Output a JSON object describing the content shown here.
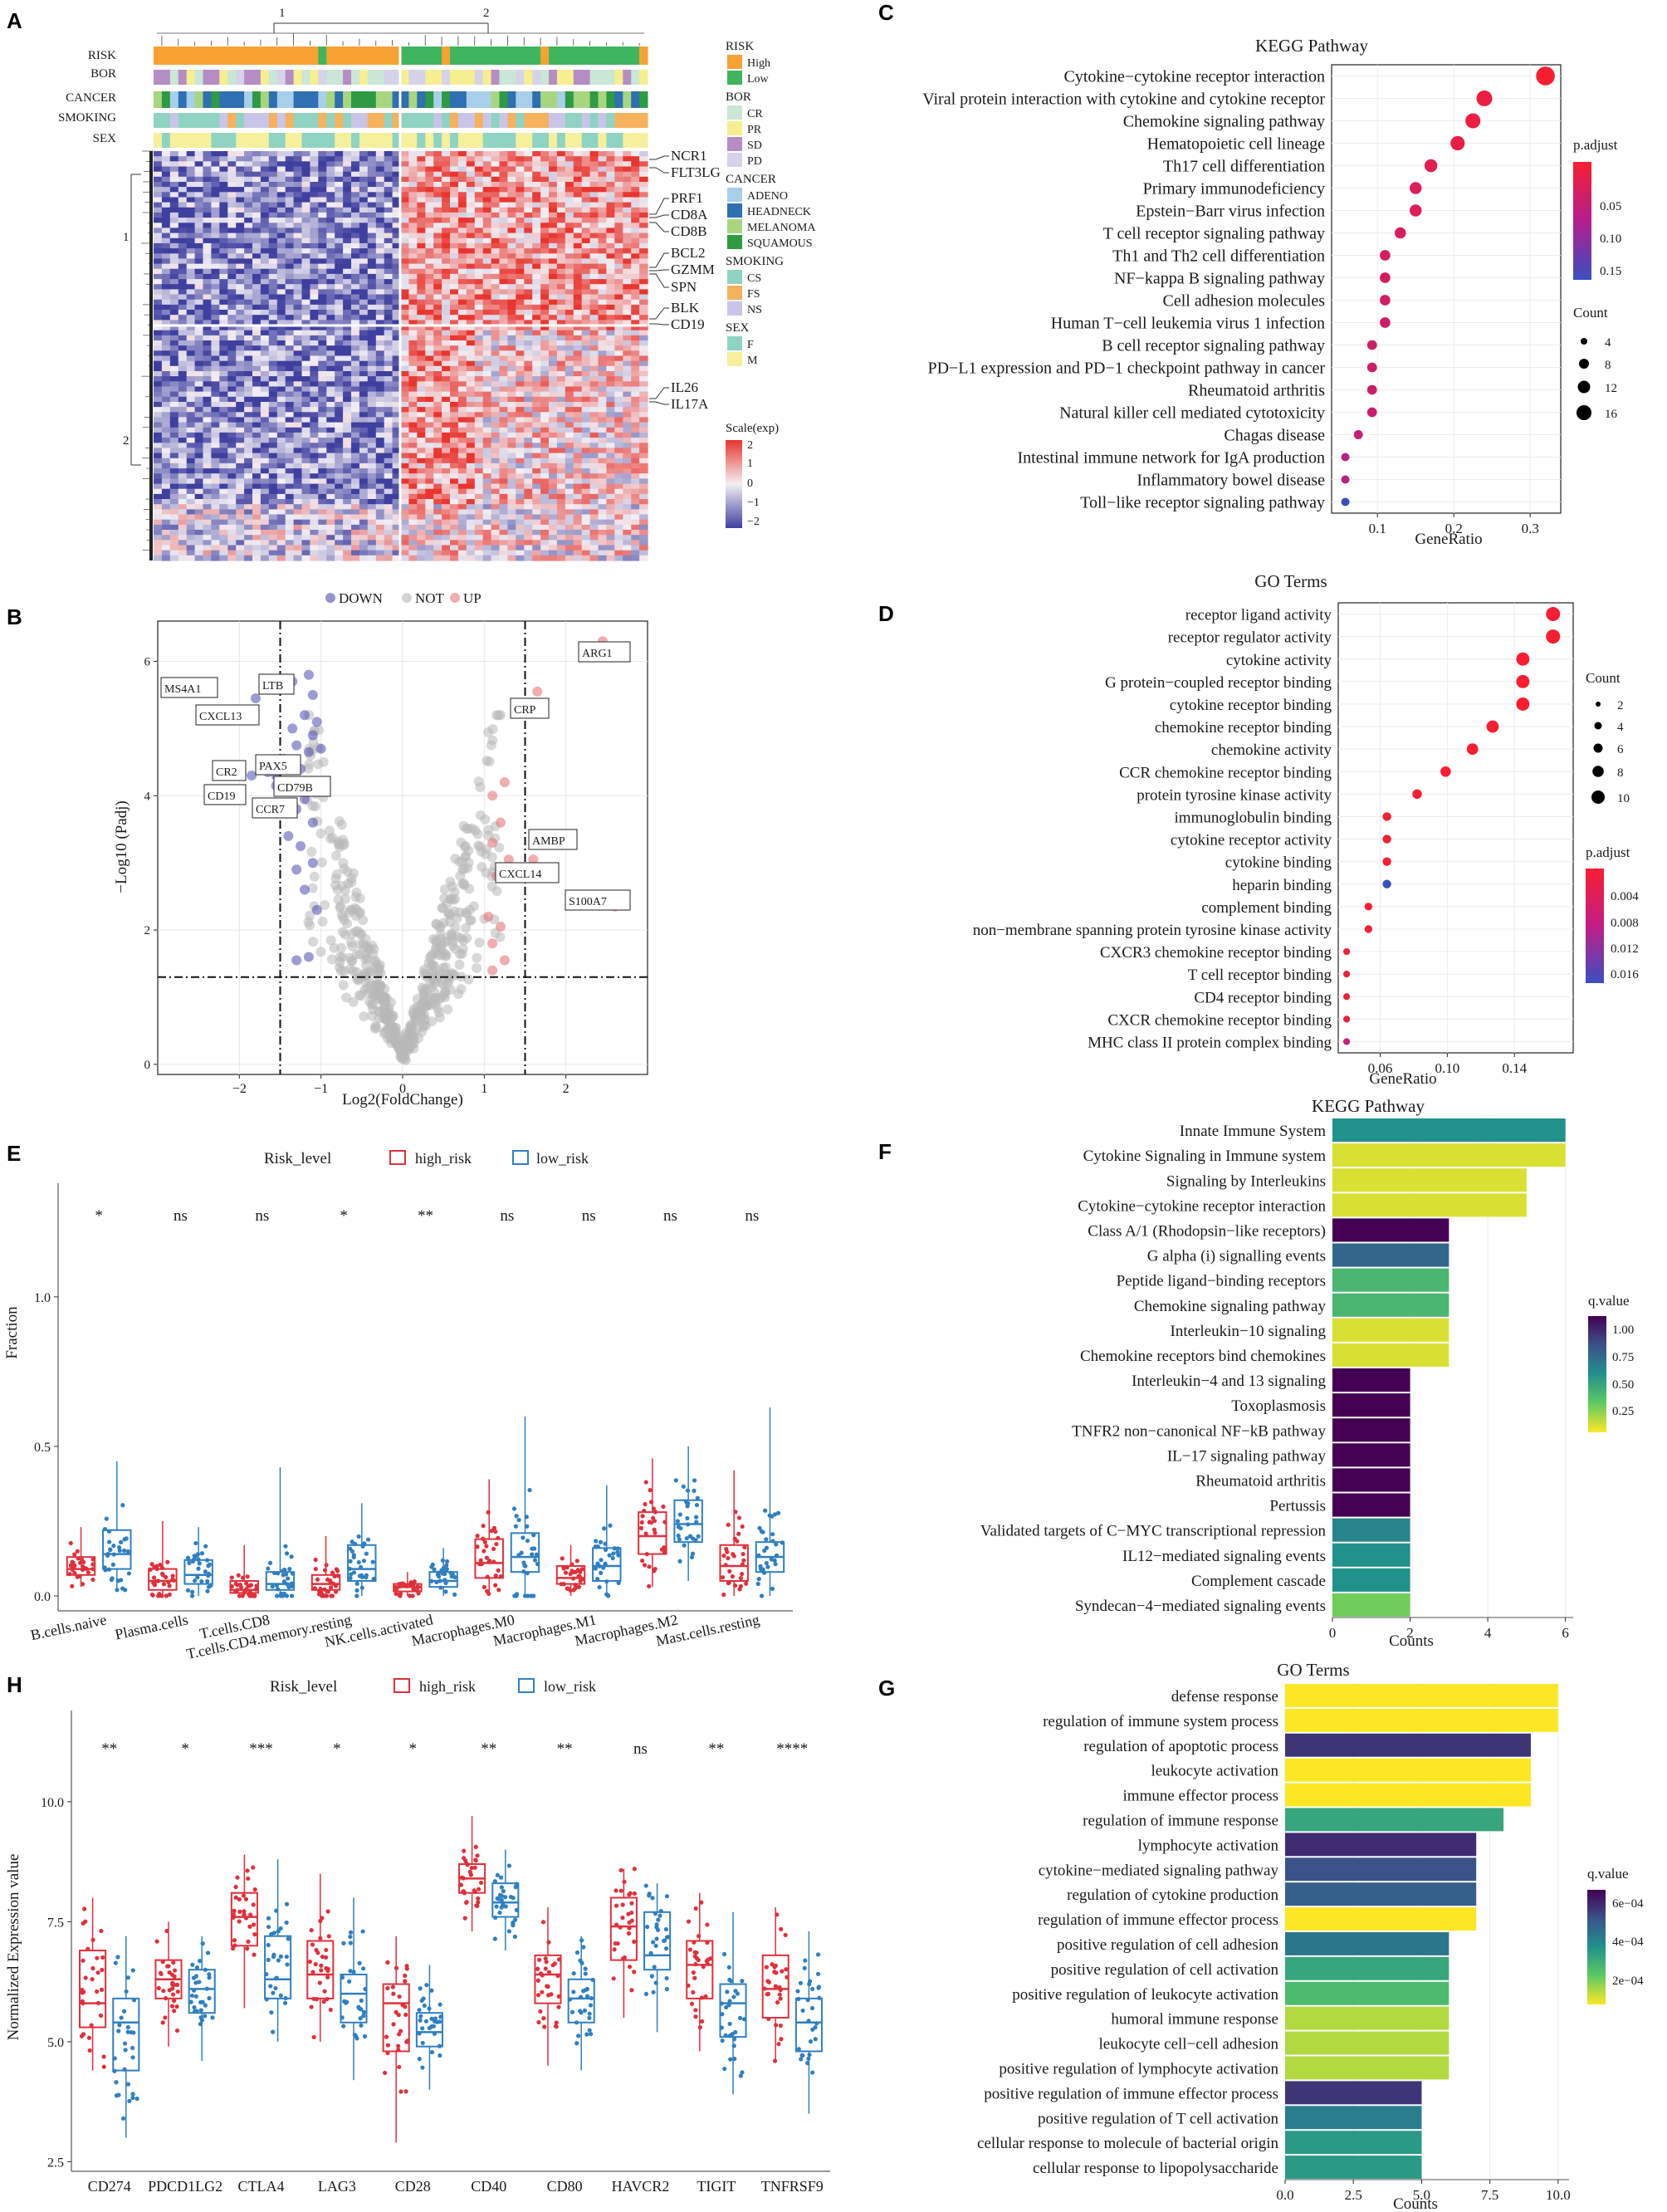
{
  "panels": {
    "A": {
      "label": "A",
      "tree_labels": [
        "1",
        "2"
      ],
      "row_tree_labels": [
        "1",
        "2"
      ],
      "annotation_rows": [
        "RISK",
        "BOR",
        "CANCER",
        "SMOKING",
        "SEX"
      ],
      "genes": [
        "NCR1",
        "FLT3LG",
        "PRF1",
        "CD8A",
        "CD8B",
        "BCL2",
        "GZMM",
        "SPN",
        "BLK",
        "CD19",
        "IL26",
        "IL17A"
      ],
      "legend": {
        "groups": [
          {
            "title": "RISK",
            "items": [
              {
                "label": "High",
                "color": "#f7a233"
              },
              {
                "label": "Low",
                "color": "#3fb55f"
              }
            ]
          },
          {
            "title": "BOR",
            "items": [
              {
                "label": "CR",
                "color": "#c9e6d6"
              },
              {
                "label": "PR",
                "color": "#f6ef8f"
              },
              {
                "label": "SD",
                "color": "#b58cc4"
              },
              {
                "label": "PD",
                "color": "#d6d2ea"
              }
            ]
          },
          {
            "title": "CANCER",
            "items": [
              {
                "label": "ADENO",
                "color": "#a8cfea"
              },
              {
                "label": "HEADNECK",
                "color": "#2f6fb2"
              },
              {
                "label": "MELANOMA",
                "color": "#a8d67e"
              },
              {
                "label": "SQUAMOUS",
                "color": "#2e9a44"
              }
            ]
          },
          {
            "title": "SMOKING",
            "items": [
              {
                "label": "CS",
                "color": "#8fd3c2"
              },
              {
                "label": "FS",
                "color": "#f6b15c"
              },
              {
                "label": "NS",
                "color": "#c9c5e8"
              }
            ]
          },
          {
            "title": "SEX",
            "items": [
              {
                "label": "F",
                "color": "#8fd3c2"
              },
              {
                "label": "M",
                "color": "#f6ef9c"
              }
            ]
          }
        ],
        "scale_title": "Scale(exp)",
        "scale_ticks": [
          "2",
          "1",
          "0",
          "−1",
          "−2"
        ]
      }
    },
    "B": {
      "label": "B",
      "legend": [
        {
          "label": "DOWN",
          "color": "#4e4bb0"
        },
        {
          "label": "NOT",
          "color": "#b8b8b8"
        },
        {
          "label": "UP",
          "color": "#e8767c"
        }
      ],
      "xlabel": "Log2(FoldChange)",
      "ylabel": "−Log10 (Padj)",
      "xticks": [
        "−2",
        "−1",
        "0",
        "1",
        "2"
      ],
      "yticks": [
        "0",
        "2",
        "4",
        "6"
      ],
      "labels": [
        "ARG1",
        "MS4A1",
        "LTB",
        "CXCL13",
        "CRP",
        "PAX5",
        "CR2",
        "CD79B",
        "CD19",
        "CCR7",
        "AMBP",
        "CXCL14",
        "S100A7"
      ]
    },
    "C": {
      "label": "C",
      "title": "KEGG Pathway",
      "xlabel": "GeneRatio",
      "xticks": [
        "0.1",
        "0.2",
        "0.3"
      ],
      "legend_padjust_title": "p.adjust",
      "legend_padjust_ticks": [
        "0.05",
        "0.10",
        "0.15"
      ],
      "legend_count_title": "Count",
      "legend_count_items": [
        "4",
        "8",
        "12",
        "16"
      ]
    },
    "D": {
      "label": "D",
      "title": "GO Terms",
      "xlabel": "GeneRatio",
      "xticks": [
        "0.06",
        "0.10",
        "0.14"
      ],
      "legend_count_title": "Count",
      "legend_count_items": [
        "2",
        "4",
        "6",
        "8",
        "10"
      ],
      "legend_padjust_title": "p.adjust",
      "legend_padjust_ticks": [
        "0.004",
        "0.008",
        "0.012",
        "0.016"
      ]
    },
    "E": {
      "label": "E",
      "legend_title": "Risk_level",
      "legend_items": [
        {
          "label": "high_risk",
          "color": "#e0303a"
        },
        {
          "label": "low_risk",
          "color": "#2f7fc1"
        }
      ],
      "ylabel": "Fraction",
      "yticks": [
        "0.0",
        "0.5",
        "1.0"
      ]
    },
    "F": {
      "label": "F",
      "title": "KEGG Pathway",
      "xlabel": "Counts",
      "xticks": [
        "0",
        "2",
        "4",
        "6"
      ],
      "legend_title": "q.value",
      "legend_ticks": [
        "1.00",
        "0.75",
        "0.50",
        "0.25"
      ]
    },
    "G": {
      "label": "G",
      "title": "GO Terms",
      "xlabel": "Counts",
      "xticks": [
        "0.0",
        "2.5",
        "5.0",
        "7.5",
        "10.0"
      ],
      "legend_title": "q.value",
      "legend_ticks": [
        "6e−04",
        "4e−04",
        "2e−04"
      ]
    },
    "H": {
      "label": "H",
      "legend_title": "Risk_level",
      "legend_items": [
        {
          "label": "high_risk",
          "color": "#e0303a"
        },
        {
          "label": "low_risk",
          "color": "#2f7fc1"
        }
      ],
      "ylabel": "Normalized Expression value",
      "yticks": [
        "2.5",
        "5.0",
        "7.5",
        "10.0"
      ]
    }
  },
  "chart_data": [
    {
      "id": "C",
      "type": "scatter",
      "title": "KEGG Pathway",
      "xlabel": "GeneRatio",
      "ylabel": "",
      "xlim": [
        0.04,
        0.34
      ],
      "categories": [
        "Cytokine−cytokine receptor interaction",
        "Viral protein interaction with cytokine and cytokine receptor",
        "Chemokine signaling pathway",
        "Hematopoietic cell lineage",
        "Th17 cell differentiation",
        "Primary immunodeficiency",
        "Epstein−Barr virus infection",
        "T cell receptor signaling pathway",
        "Th1 and Th2 cell differentiation",
        "NF−kappa B signaling pathway",
        "Cell adhesion molecules",
        "Human T−cell leukemia virus 1 infection",
        "B cell receptor signaling pathway",
        "PD−L1 expression and PD−1 checkpoint pathway in cancer",
        "Rheumatoid arthritis",
        "Natural killer cell mediated cytotoxicity",
        "Chagas disease",
        "Intestinal immune network for IgA production",
        "Inflammatory bowel disease",
        "Toll−like receptor signaling pathway"
      ],
      "values": [
        0.32,
        0.24,
        0.225,
        0.205,
        0.17,
        0.15,
        0.15,
        0.13,
        0.11,
        0.11,
        0.11,
        0.11,
        0.093,
        0.093,
        0.093,
        0.093,
        0.075,
        0.058,
        0.058,
        0.058
      ],
      "count": [
        18,
        14,
        13,
        12,
        10,
        9,
        9,
        8,
        7,
        7,
        7,
        7,
        6,
        6,
        6,
        6,
        5,
        4,
        4,
        4
      ],
      "p_adjust": [
        0.02,
        0.03,
        0.03,
        0.035,
        0.04,
        0.045,
        0.045,
        0.05,
        0.055,
        0.055,
        0.055,
        0.06,
        0.06,
        0.06,
        0.06,
        0.065,
        0.07,
        0.075,
        0.08,
        0.15
      ]
    },
    {
      "id": "D",
      "type": "scatter",
      "title": "GO Terms",
      "xlabel": "GeneRatio",
      "ylabel": "",
      "xlim": [
        0.035,
        0.175
      ],
      "categories": [
        "receptor ligand activity",
        "receptor regulator activity",
        "cytokine activity",
        "G protein−coupled receptor binding",
        "cytokine receptor binding",
        "chemokine receptor binding",
        "chemokine activity",
        "CCR chemokine receptor binding",
        "protein tyrosine kinase activity",
        "immunoglobulin binding",
        "cytokine receptor activity",
        "cytokine binding",
        "heparin binding",
        "complement binding",
        "non−membrane spanning protein tyrosine kinase activity",
        "CXCR3 chemokine receptor binding",
        "T cell receptor binding",
        "CD4 receptor binding",
        "CXCR chemokine receptor binding",
        "MHC class II protein complex binding"
      ],
      "values": [
        0.163,
        0.163,
        0.145,
        0.145,
        0.145,
        0.127,
        0.115,
        0.099,
        0.082,
        0.064,
        0.064,
        0.064,
        0.064,
        0.053,
        0.053,
        0.04,
        0.04,
        0.04,
        0.04,
        0.04
      ],
      "count": [
        10,
        10,
        9,
        9,
        9,
        8,
        7,
        6,
        5,
        4,
        4,
        4,
        4,
        3,
        3,
        2,
        2,
        2,
        2,
        2
      ],
      "p_adjust": [
        0.001,
        0.001,
        0.001,
        0.001,
        0.001,
        0.001,
        0.001,
        0.001,
        0.001,
        0.001,
        0.001,
        0.001,
        0.017,
        0.001,
        0.001,
        0.002,
        0.002,
        0.002,
        0.003,
        0.008
      ]
    },
    {
      "id": "F",
      "type": "bar",
      "orientation": "horizontal",
      "title": "KEGG Pathway",
      "xlabel": "Counts",
      "ylabel": "",
      "xlim": [
        0,
        6.2
      ],
      "categories": [
        "Innate Immune System",
        "Cytokine Signaling in Immune system",
        "Signaling by Interleukins",
        "Cytokine−cytokine receptor interaction",
        "Class A/1 (Rhodopsin−like receptors)",
        "G alpha (i) signalling events",
        "Peptide ligand−binding receptors",
        "Chemokine signaling pathway",
        "Interleukin−10 signaling",
        "Chemokine receptors bind chemokines",
        "Interleukin−4 and 13 signaling",
        "Toxoplasmosis",
        "TNFR2 non−canonical NF−kB pathway",
        "IL−17 signaling pathway",
        "Rheumatoid arthritis",
        "Pertussis",
        "Validated targets of C−MYC transcriptional repression",
        "IL12−mediated signaling events",
        "Complement cascade",
        "Syndecan−4−mediated signaling events"
      ],
      "values": [
        6,
        6,
        5,
        5,
        3,
        3,
        3,
        3,
        3,
        3,
        2,
        2,
        2,
        2,
        2,
        2,
        2,
        2,
        2,
        2
      ],
      "q_value": [
        0.55,
        0.15,
        0.15,
        0.15,
        1.0,
        0.7,
        0.4,
        0.4,
        0.15,
        0.15,
        1.0,
        1.0,
        1.0,
        1.0,
        1.0,
        1.0,
        0.6,
        0.55,
        0.55,
        0.3
      ]
    },
    {
      "id": "G",
      "type": "bar",
      "orientation": "horizontal",
      "title": "GO Terms",
      "xlabel": "Counts",
      "ylabel": "",
      "xlim": [
        0,
        10.4
      ],
      "categories": [
        "defense response",
        "regulation of immune system process",
        "regulation of apoptotic process",
        "leukocyte activation",
        "immune effector process",
        "regulation of immune response",
        "lymphocyte activation",
        "cytokine−mediated signaling pathway",
        "regulation of cytokine production",
        "regulation of immune effector process",
        "positive regulation of cell adhesion",
        "positive regulation of cell activation",
        "positive regulation of leukocyte activation",
        "humoral immune response",
        "leukocyte cell−cell adhesion",
        "positive regulation of lymphocyte activation",
        "positive regulation of immune effector process",
        "positive regulation of T cell activation",
        "cellular response to molecule of bacterial origin",
        "cellular response to lipopolysaccharide"
      ],
      "values": [
        10,
        10,
        9,
        9,
        9,
        8,
        7,
        7,
        7,
        7,
        6,
        6,
        6,
        6,
        6,
        6,
        5,
        5,
        5,
        5
      ],
      "q_value": [
        0.0001,
        0.0001,
        0.00068,
        0.0001,
        0.0001,
        0.00038,
        0.0007,
        0.00062,
        0.00058,
        0.0001,
        0.00052,
        0.00038,
        0.00032,
        0.00018,
        0.00018,
        0.00018,
        0.00068,
        0.0005,
        0.00042,
        0.00042
      ]
    },
    {
      "id": "E",
      "type": "box",
      "ylabel": "Fraction",
      "xlabel": "",
      "ylim": [
        -0.05,
        1.38
      ],
      "categories": [
        "B.cells.naive",
        "Plasma.cells",
        "T.cells.CD8",
        "T.cells.CD4.memory.resting",
        "NK.cells.activated",
        "Macrophages.M0",
        "Macrophages.M1",
        "Macrophages.M2",
        "Mast.cells.resting"
      ],
      "significance": [
        "*",
        "ns",
        "ns",
        "*",
        "**",
        "ns",
        "ns",
        "ns",
        "ns"
      ],
      "series": [
        {
          "name": "high_risk",
          "median": [
            0.09,
            0.05,
            0.02,
            0.04,
            0.03,
            0.11,
            0.06,
            0.2,
            0.1
          ],
          "q1": [
            0.07,
            0.02,
            0.01,
            0.02,
            0.015,
            0.06,
            0.04,
            0.14,
            0.05
          ],
          "q3": [
            0.13,
            0.09,
            0.05,
            0.07,
            0.04,
            0.19,
            0.1,
            0.28,
            0.17
          ],
          "min": [
            0.03,
            0.0,
            0.0,
            0.0,
            0.0,
            0.0,
            0.0,
            0.03,
            0.0
          ],
          "max": [
            0.23,
            0.25,
            0.17,
            0.2,
            0.08,
            0.39,
            0.17,
            0.46,
            0.42
          ]
        },
        {
          "name": "low_risk",
          "median": [
            0.14,
            0.07,
            0.04,
            0.09,
            0.05,
            0.13,
            0.1,
            0.24,
            0.13
          ],
          "q1": [
            0.09,
            0.04,
            0.02,
            0.05,
            0.03,
            0.08,
            0.05,
            0.18,
            0.08
          ],
          "q3": [
            0.22,
            0.12,
            0.08,
            0.17,
            0.08,
            0.21,
            0.16,
            0.32,
            0.18
          ],
          "min": [
            0.02,
            0.0,
            0.0,
            0.0,
            0.0,
            0.0,
            0.0,
            0.05,
            0.0
          ],
          "max": [
            0.45,
            0.23,
            0.43,
            0.31,
            0.16,
            0.6,
            0.37,
            0.5,
            0.63
          ]
        }
      ]
    },
    {
      "id": "H",
      "type": "box",
      "ylabel": "Normalized Expression value",
      "xlabel": "",
      "ylim": [
        2.3,
        11.9
      ],
      "categories": [
        "CD274",
        "PDCD1LG2",
        "CTLA4",
        "LAG3",
        "CD28",
        "CD40",
        "CD80",
        "HAVCR2",
        "TIGIT",
        "TNFRSF9"
      ],
      "significance": [
        "**",
        "*",
        "***",
        "*",
        "*",
        "**",
        "**",
        "ns",
        "**",
        "****"
      ],
      "series": [
        {
          "name": "high_risk",
          "median": [
            5.8,
            6.3,
            7.6,
            6.4,
            5.8,
            8.4,
            6.4,
            7.4,
            6.6,
            6.1
          ],
          "q1": [
            5.3,
            5.9,
            7.0,
            5.9,
            4.8,
            8.1,
            5.8,
            6.7,
            5.9,
            5.5
          ],
          "q3": [
            6.9,
            6.7,
            8.1,
            7.1,
            6.2,
            8.7,
            6.8,
            8.0,
            7.1,
            6.8
          ],
          "min": [
            4.4,
            4.9,
            5.7,
            5.0,
            2.9,
            7.3,
            4.5,
            5.5,
            4.8,
            4.6
          ],
          "max": [
            8.0,
            7.5,
            8.9,
            8.5,
            7.2,
            9.7,
            7.8,
            8.6,
            8.1,
            7.8
          ]
        },
        {
          "name": "low_risk",
          "median": [
            5.4,
            6.1,
            6.3,
            6.0,
            5.2,
            7.9,
            5.9,
            6.8,
            5.8,
            5.4
          ],
          "q1": [
            4.4,
            5.6,
            5.9,
            5.4,
            4.9,
            7.6,
            5.4,
            6.5,
            5.1,
            4.8
          ],
          "q3": [
            5.9,
            6.5,
            7.2,
            6.4,
            5.6,
            8.3,
            6.3,
            7.7,
            6.2,
            5.9
          ],
          "min": [
            3.0,
            4.6,
            5.0,
            4.2,
            4.0,
            6.9,
            4.4,
            5.2,
            3.9,
            3.5
          ],
          "max": [
            7.2,
            7.2,
            8.8,
            8.0,
            6.6,
            9.0,
            7.2,
            8.3,
            7.7,
            7.3
          ]
        }
      ]
    }
  ]
}
